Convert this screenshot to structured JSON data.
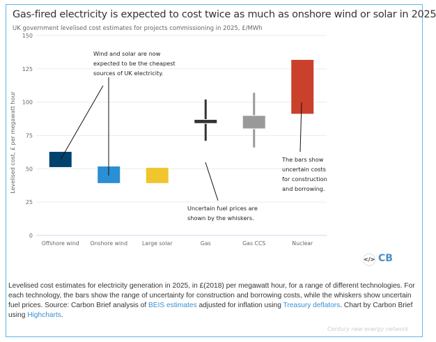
{
  "chart_data": {
    "type": "floating-bar-with-whiskers",
    "title": "Gas-fired electricity is expected to cost twice as much as onshore wind or solar in 2025",
    "subtitle": "UK government levelised cost estimates for projects commissioning in 2025, £/MWh",
    "ylabel": "Levelised cost, £ per megawatt hour",
    "xlabel": "",
    "ylim": [
      0,
      150
    ],
    "yticks": [
      0,
      25,
      50,
      75,
      100,
      125,
      150
    ],
    "grid": true,
    "categories": [
      "Offshore wind",
      "Onshore wind",
      "Large solar",
      "Gas",
      "Gas CCS",
      "Nuclear"
    ],
    "bar_low": [
      51,
      39,
      39,
      84,
      80,
      91
    ],
    "bar_high": [
      63,
      52,
      51,
      87,
      90,
      132
    ],
    "whisker_low": [
      null,
      null,
      null,
      71,
      66,
      null
    ],
    "whisker_high": [
      null,
      null,
      null,
      102,
      107,
      null
    ],
    "colors": [
      "#00416e",
      "#2a8fd4",
      "#f0c62e",
      "#333333",
      "#9a9a9a",
      "#c9402b"
    ],
    "annotations": [
      "Wind and solar are now expected to be the cheapest sources of UK electricity.",
      "Uncertain fuel prices are shown by the whiskers.",
      "The bars show uncertain costs for construction and borrowing."
    ]
  },
  "annotation_lines": {
    "a1": [
      "Wind and solar are now",
      "expected to be the cheapest",
      "sources of UK electricity."
    ],
    "a2": [
      "Uncertain fuel prices are",
      "shown by the whiskers."
    ],
    "a3": [
      "The bars show",
      "uncertain costs",
      "for construction",
      "and borrowing."
    ]
  },
  "footer": {
    "embed_icon": "code-icon",
    "logo": "CB",
    "caption_1": "Levelised cost estimates for electricity generation in 2025, in £(2018) per megawatt hour, for a range of different technologies. For each technology, the bars show the range of uncertainty for construction and borrowing costs, while the whiskers show uncertain fuel prices. Source: Carbon Brief analysis of ",
    "link_1": "BEIS estimates",
    "caption_2": " adjusted for inflation using ",
    "link_2": "Treasury deflators",
    "caption_3": ". Chart by Carbon Brief using ",
    "link_3": "Highcharts",
    "caption_4": ".",
    "watermark": "Century new energy network"
  }
}
